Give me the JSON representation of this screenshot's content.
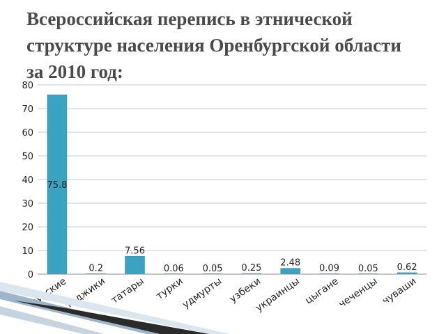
{
  "slide": {
    "title": "Всероссийская перепись в этнической структуре населения Оренбургской области за 2010 год:"
  },
  "colors": {
    "bar": "#3aa3c2",
    "bar_edge": "#2a86a3",
    "grid": "#c8c8c8",
    "axis": "#8c8c8c",
    "text": "#222222",
    "title": "#4a4a4a"
  },
  "chart_data": {
    "type": "bar",
    "categories": [
      "русские",
      "таджики",
      "татары",
      "турки",
      "удмурты",
      "узбеки",
      "украинцы",
      "цыгане",
      "чеченцы",
      "чуваши"
    ],
    "values": [
      75.8,
      0.2,
      7.56,
      0.06,
      0.05,
      0.25,
      2.48,
      0.09,
      0.05,
      0.62
    ],
    "data_labels": [
      "75.8",
      "0.2",
      "7.56",
      "0.06",
      "0.05",
      "0.25",
      "2.48",
      "0.09",
      "0.05",
      "0.62"
    ],
    "yticks": [
      0,
      10,
      20,
      30,
      40,
      50,
      60,
      70,
      80
    ],
    "ylim": [
      0,
      80
    ],
    "grid": true,
    "legend": "none"
  }
}
